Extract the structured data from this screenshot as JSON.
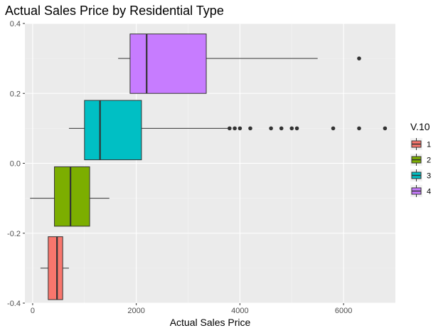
{
  "chart_data": {
    "type": "boxplot",
    "orientation": "horizontal",
    "title": "Actual Sales Price by Residential Type",
    "xlabel": "Actual Sales Price",
    "ylabel": "",
    "xlim": [
      -150,
      7000
    ],
    "ylim": [
      -0.4,
      0.4
    ],
    "x_ticks": [
      0,
      2000,
      4000,
      6000
    ],
    "x_tick_labels": [
      "0",
      "2000",
      "4000",
      "6000"
    ],
    "y_ticks": [
      -0.4,
      -0.2,
      0.0,
      0.2,
      0.4
    ],
    "y_tick_labels": [
      "-0.4",
      "-0.2",
      "0.0",
      "0.2",
      "0.4"
    ],
    "grid": true,
    "legend": {
      "title": "V.10",
      "position": "right"
    },
    "series": [
      {
        "name": "1",
        "color": "#F8766D",
        "y_center": -0.3,
        "y_range": [
          -0.39,
          -0.21
        ],
        "whisker_low": 150,
        "q1": 300,
        "median": 470,
        "q3": 580,
        "whisker_high": 700,
        "outliers": []
      },
      {
        "name": "2",
        "color": "#7CAE00",
        "y_center": -0.1,
        "y_range": [
          -0.18,
          -0.01
        ],
        "whisker_low": -50,
        "q1": 420,
        "median": 730,
        "q3": 1100,
        "whisker_high": 1480,
        "outliers": []
      },
      {
        "name": "3",
        "color": "#00BFC4",
        "y_center": 0.1,
        "y_range": [
          0.01,
          0.18
        ],
        "whisker_low": 700,
        "q1": 1000,
        "median": 1300,
        "q3": 2100,
        "whisker_high": 3800,
        "outliers": [
          3800,
          3900,
          4000,
          4200,
          4600,
          4800,
          5000,
          5100,
          5800,
          6300,
          6800
        ]
      },
      {
        "name": "4",
        "color": "#C77CFF",
        "y_center": 0.3,
        "y_range": [
          0.2,
          0.37
        ],
        "whisker_low": 1650,
        "q1": 1880,
        "median": 2200,
        "q3": 3350,
        "whisker_high": 5500,
        "outliers": [
          6300
        ]
      }
    ]
  }
}
